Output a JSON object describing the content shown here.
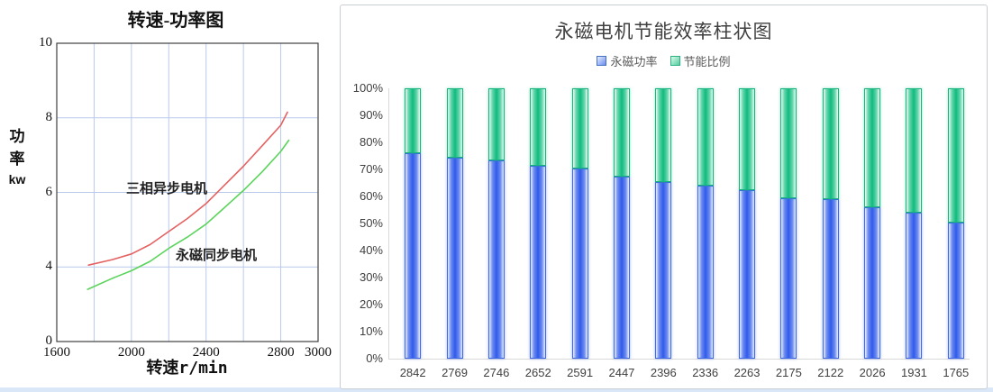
{
  "left_chart_ui": {
    "ylabel_lines": {
      "l1": "功",
      "l2": "率",
      "l3": "kw"
    }
  },
  "chart_data": [
    {
      "type": "line",
      "title": "转速-功率图",
      "xlabel": "转速r/min",
      "ylabel": "功率kw",
      "ylabel_lines": [
        "功",
        "率",
        "kw"
      ],
      "xlim": [
        1600,
        3000
      ],
      "x_ticks": [
        1600,
        2000,
        2400,
        2800,
        3000
      ],
      "x_gridlines": [
        1800,
        2000,
        2200,
        2400,
        2600,
        2800
      ],
      "y_tick_labels": [
        "10",
        "8",
        "6",
        "4",
        "0"
      ],
      "y_gridline_values": [
        8,
        6,
        4
      ],
      "grid": true,
      "gridline_color": "#b9c9ec",
      "border_color": "#404040",
      "legend_position": "inline-labels",
      "series": [
        {
          "name": "三相异步电机",
          "color": "#e56161",
          "points": [
            [
              1770,
              4.05
            ],
            [
              1900,
              4.2
            ],
            [
              2000,
              4.35
            ],
            [
              2100,
              4.6
            ],
            [
              2200,
              4.95
            ],
            [
              2300,
              5.3
            ],
            [
              2400,
              5.7
            ],
            [
              2500,
              6.2
            ],
            [
              2600,
              6.7
            ],
            [
              2700,
              7.25
            ],
            [
              2800,
              7.8
            ],
            [
              2836,
              8.15
            ]
          ]
        },
        {
          "name": "永磁同步电机",
          "color": "#5ad45a",
          "points": [
            [
              1765,
              2.8
            ],
            [
              1900,
              3.4
            ],
            [
              2000,
              3.8
            ],
            [
              2100,
              4.15
            ],
            [
              2200,
              4.5
            ],
            [
              2300,
              4.8
            ],
            [
              2400,
              5.15
            ],
            [
              2500,
              5.6
            ],
            [
              2600,
              6.05
            ],
            [
              2700,
              6.55
            ],
            [
              2800,
              7.1
            ],
            [
              2843,
              7.4
            ]
          ]
        }
      ]
    },
    {
      "type": "bar",
      "subtype": "stacked",
      "title": "永磁电机节能效率柱状图",
      "categories": [
        "2842",
        "2769",
        "2746",
        "2652",
        "2591",
        "2447",
        "2396",
        "2336",
        "2263",
        "2175",
        "2122",
        "2026",
        "1931",
        "1765"
      ],
      "series": [
        {
          "name": "永磁功率",
          "color": "#2f5bec",
          "values": [
            76,
            74.5,
            73.5,
            71.5,
            70.5,
            67.5,
            65.5,
            64,
            62.5,
            59.5,
            59,
            56,
            54,
            50.5
          ]
        },
        {
          "name": "节能比例",
          "color": "#10ba7f",
          "values": [
            24,
            25.5,
            26.5,
            28.5,
            29.5,
            32.5,
            34.5,
            36,
            37.5,
            40.5,
            41,
            44,
            46,
            49.5
          ]
        }
      ],
      "y_ticks": [
        "100%",
        "90%",
        "80%",
        "70%",
        "60%",
        "50%",
        "40%",
        "30%",
        "20%",
        "10%",
        "0%"
      ],
      "ylim": [
        0,
        100
      ],
      "grid": false,
      "legend_position": "top"
    }
  ]
}
